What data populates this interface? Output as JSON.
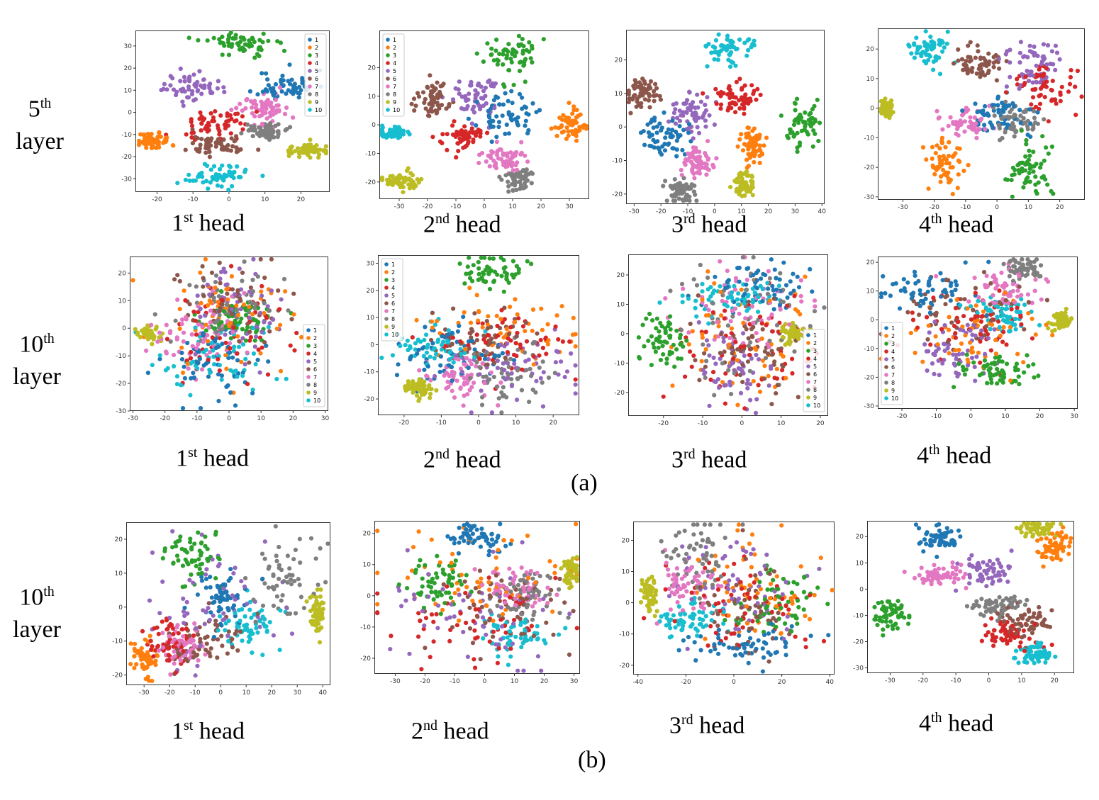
{
  "class_colors": [
    "#1f77b4",
    "#ff7f0e",
    "#2ca02c",
    "#d62728",
    "#9467bd",
    "#8c564b",
    "#e377c2",
    "#7f7f7f",
    "#bcbd22",
    "#17becf"
  ],
  "row_labels": [
    {
      "num": "5",
      "sup": "th",
      "word": "layer"
    },
    {
      "num": "10",
      "sup": "th",
      "word": "layer"
    },
    {
      "num": "10",
      "sup": "th",
      "word": "layer"
    }
  ],
  "panel_tags": [
    "(a)",
    "(b)"
  ],
  "chart_data": [
    {
      "type": "scatter",
      "panel": "a",
      "layer": "5th",
      "title_num": "1",
      "title_sup": "st",
      "title_word": "head",
      "xlim": [
        -26,
        28
      ],
      "ylim": [
        -36,
        37
      ],
      "xticks": [
        -20,
        -10,
        0,
        10,
        20
      ],
      "yticks": [
        -30,
        -20,
        -10,
        0,
        10,
        20,
        30
      ],
      "legend": {
        "labels": [
          "1",
          "2",
          "3",
          "4",
          "5",
          "6",
          "7",
          "8",
          "9",
          "10"
        ],
        "position": "top-right"
      },
      "clusters": [
        [
          16,
          12,
          4,
          3.5
        ],
        [
          -21,
          -13,
          2.5,
          2
        ],
        [
          3,
          31,
          5,
          3
        ],
        [
          -4,
          -5,
          5,
          3
        ],
        [
          -10,
          12,
          4,
          3
        ],
        [
          -3,
          -15,
          4,
          2.5
        ],
        [
          9,
          2,
          4,
          3.5
        ],
        [
          10,
          -8,
          2.5,
          2
        ],
        [
          22,
          -17,
          2.5,
          1.5
        ],
        [
          -3,
          -29,
          4,
          2.5
        ]
      ],
      "n": 60,
      "seed": 11
    },
    {
      "type": "scatter",
      "panel": "a",
      "layer": "5th",
      "title_num": "2",
      "title_sup": "nd",
      "title_word": "head",
      "xlim": [
        -37,
        37
      ],
      "ylim": [
        -26,
        33
      ],
      "xticks": [
        -30,
        -20,
        -10,
        0,
        10,
        20,
        30
      ],
      "yticks": [
        -20,
        -10,
        0,
        10,
        20
      ],
      "legend": {
        "labels": [
          "1",
          "2",
          "3",
          "4",
          "5",
          "6",
          "7",
          "8",
          "9",
          "10"
        ],
        "position": "top-left"
      },
      "clusters": [
        [
          8,
          3,
          5,
          3.5
        ],
        [
          30,
          0,
          3,
          2.5
        ],
        [
          10,
          24,
          5,
          4
        ],
        [
          -8,
          -4,
          4,
          2.5
        ],
        [
          -3,
          10,
          4,
          4
        ],
        [
          -18,
          9,
          3,
          3
        ],
        [
          6,
          -12,
          4,
          2.5
        ],
        [
          12,
          -19,
          3,
          2.5
        ],
        [
          -30,
          -20,
          3,
          1.5
        ],
        [
          -33,
          -3,
          4,
          1
        ]
      ],
      "n": 60,
      "seed": 23
    },
    {
      "type": "scatter",
      "panel": "a",
      "layer": "5th",
      "title_num": "3",
      "title_sup": "rd",
      "title_word": "head",
      "xlim": [
        -33,
        41
      ],
      "ylim": [
        -23,
        29
      ],
      "xticks": [
        -30,
        -20,
        -10,
        0,
        10,
        20,
        30,
        40
      ],
      "yticks": [
        -20,
        -10,
        0,
        10,
        20
      ],
      "legend": null,
      "clusters": [
        [
          -18,
          -3,
          4,
          3
        ],
        [
          14,
          -5,
          2.5,
          3
        ],
        [
          32,
          1,
          3,
          4
        ],
        [
          8,
          9,
          4,
          2.5
        ],
        [
          -8,
          5,
          4,
          3
        ],
        [
          -27,
          10,
          3,
          2
        ],
        [
          -6,
          -10,
          3,
          2.5
        ],
        [
          -12,
          -19,
          3,
          2
        ],
        [
          11,
          -17,
          2,
          2
        ],
        [
          5,
          23,
          4,
          2
        ]
      ],
      "n": 60,
      "seed": 37
    },
    {
      "type": "scatter",
      "panel": "a",
      "layer": "5th",
      "title_num": "4",
      "title_sup": "th",
      "title_word": "head",
      "xlim": [
        -38,
        28
      ],
      "ylim": [
        -31,
        27
      ],
      "xticks": [
        -30,
        -20,
        -10,
        0,
        10,
        20
      ],
      "yticks": [
        -30,
        -20,
        -10,
        0,
        10,
        20
      ],
      "legend": null,
      "clusters": [
        [
          3,
          -2,
          6,
          3
        ],
        [
          -17,
          -19,
          3,
          4
        ],
        [
          10,
          -21,
          4,
          5
        ],
        [
          15,
          7,
          5,
          4
        ],
        [
          12,
          15,
          5,
          5
        ],
        [
          -6,
          15,
          4,
          3
        ],
        [
          -10,
          -5,
          4,
          2.5
        ],
        [
          5,
          -5,
          4,
          3
        ],
        [
          -35,
          0,
          1,
          1.5
        ],
        [
          -22,
          20,
          3,
          3
        ]
      ],
      "n": 60,
      "seed": 41
    },
    {
      "type": "scatter",
      "panel": "a",
      "layer": "10th",
      "title_num": "1",
      "title_sup": "st",
      "title_word": "head",
      "xlim": [
        -31,
        31
      ],
      "ylim": [
        -30,
        26
      ],
      "xticks": [
        -30,
        -20,
        -10,
        0,
        10,
        20,
        30
      ],
      "yticks": [
        -30,
        -20,
        -10,
        0,
        10,
        20
      ],
      "legend": {
        "labels": [
          "1",
          "2",
          "3",
          "4",
          "5",
          "6",
          "7",
          "8",
          "9",
          "10"
        ],
        "position": "center-right"
      },
      "clusters": [
        [
          -4,
          -12,
          8,
          8
        ],
        [
          0,
          5,
          12,
          10
        ],
        [
          3,
          1,
          6,
          5
        ],
        [
          0,
          -2,
          10,
          10
        ],
        [
          5,
          8,
          8,
          8
        ],
        [
          3,
          8,
          10,
          8
        ],
        [
          -10,
          -3,
          8,
          6
        ],
        [
          0,
          8,
          10,
          8
        ],
        [
          -25,
          -2,
          1.5,
          1.5
        ],
        [
          -5,
          -10,
          10,
          6
        ]
      ],
      "n": 60,
      "seed": 53
    },
    {
      "type": "scatter",
      "panel": "a",
      "layer": "10th",
      "title_num": "2",
      "title_sup": "nd",
      "title_word": "head",
      "xlim": [
        -27,
        27
      ],
      "ylim": [
        -26,
        33
      ],
      "xticks": [
        -20,
        -10,
        0,
        10,
        20
      ],
      "yticks": [
        -20,
        -10,
        0,
        10,
        20,
        30
      ],
      "legend": {
        "labels": [
          "1",
          "2",
          "3",
          "4",
          "5",
          "6",
          "7",
          "8",
          "9",
          "10"
        ],
        "position": "top-left"
      },
      "clusters": [
        [
          -8,
          -5,
          8,
          6
        ],
        [
          5,
          5,
          10,
          6
        ],
        [
          3,
          26,
          4,
          3
        ],
        [
          5,
          0,
          10,
          6
        ],
        [
          10,
          -8,
          8,
          6
        ],
        [
          0,
          0,
          6,
          5
        ],
        [
          -5,
          -12,
          5,
          4
        ],
        [
          8,
          -10,
          6,
          6
        ],
        [
          -16,
          -16,
          2,
          1.5
        ],
        [
          -12,
          -2,
          6,
          4
        ]
      ],
      "n": 60,
      "seed": 67
    },
    {
      "type": "scatter",
      "panel": "a",
      "layer": "10th",
      "title_num": "3",
      "title_sup": "rd",
      "title_word": "head",
      "xlim": [
        -29,
        22
      ],
      "ylim": [
        -28,
        27
      ],
      "xticks": [
        -20,
        -10,
        0,
        10,
        20
      ],
      "yticks": [
        -20,
        -10,
        0,
        10,
        20
      ],
      "legend": {
        "labels": [
          "1",
          "2",
          "3",
          "4",
          "5",
          "6",
          "7",
          "8",
          "9",
          "10"
        ],
        "position": "center-right"
      },
      "clusters": [
        [
          5,
          17,
          6,
          4
        ],
        [
          0,
          0,
          10,
          10
        ],
        [
          -20,
          -2,
          3,
          5
        ],
        [
          0,
          -5,
          10,
          10
        ],
        [
          -2,
          -12,
          5,
          6
        ],
        [
          2,
          -5,
          8,
          8
        ],
        [
          0,
          10,
          10,
          8
        ],
        [
          0,
          5,
          10,
          10
        ],
        [
          13,
          0,
          1.5,
          1.5
        ],
        [
          -3,
          12,
          6,
          3
        ]
      ],
      "n": 60,
      "seed": 79
    },
    {
      "type": "scatter",
      "panel": "a",
      "layer": "10th",
      "title_num": "4",
      "title_sup": "th",
      "title_word": "head",
      "xlim": [
        -27,
        31
      ],
      "ylim": [
        -31,
        22
      ],
      "xticks": [
        -20,
        -10,
        0,
        10,
        20,
        30
      ],
      "yticks": [
        -30,
        -20,
        -10,
        0,
        10,
        20
      ],
      "legend": {
        "labels": [
          "1",
          "2",
          "3",
          "4",
          "5",
          "6",
          "7",
          "8",
          "9",
          "10"
        ],
        "position": "center-left"
      },
      "clusters": [
        [
          -12,
          10,
          7,
          4
        ],
        [
          0,
          -5,
          12,
          6
        ],
        [
          8,
          -18,
          5,
          3
        ],
        [
          0,
          -2,
          10,
          6
        ],
        [
          -5,
          -10,
          6,
          6
        ],
        [
          -3,
          5,
          10,
          6
        ],
        [
          10,
          10,
          6,
          4
        ],
        [
          15,
          18,
          3,
          2
        ],
        [
          26,
          0,
          1.5,
          1.5
        ],
        [
          10,
          2,
          5,
          3
        ]
      ],
      "n": 60,
      "seed": 83
    },
    {
      "type": "scatter",
      "panel": "b",
      "layer": "10th",
      "title_num": "1",
      "title_sup": "st",
      "title_word": "head",
      "xlim": [
        -37,
        43
      ],
      "ylim": [
        -23,
        25
      ],
      "xticks": [
        -30,
        -20,
        -10,
        0,
        10,
        20,
        30,
        40
      ],
      "yticks": [
        -20,
        -10,
        0,
        10,
        20
      ],
      "legend": null,
      "clusters": [
        [
          -2,
          3,
          6,
          4
        ],
        [
          -30,
          -15,
          3,
          3
        ],
        [
          -12,
          15,
          5,
          4
        ],
        [
          -20,
          -10,
          5,
          4
        ],
        [
          0,
          0,
          15,
          10
        ],
        [
          -5,
          -10,
          8,
          4
        ],
        [
          -15,
          -12,
          5,
          3
        ],
        [
          25,
          8,
          8,
          6
        ],
        [
          38,
          -2,
          1.5,
          3
        ],
        [
          10,
          -5,
          6,
          3
        ]
      ],
      "n": 60,
      "seed": 97
    },
    {
      "type": "scatter",
      "panel": "b",
      "layer": "10th",
      "title_num": "2",
      "title_sup": "nd",
      "title_word": "head",
      "xlim": [
        -37,
        32
      ],
      "ylim": [
        -25,
        24
      ],
      "xticks": [
        -30,
        -20,
        -10,
        0,
        10,
        20,
        30
      ],
      "yticks": [
        -20,
        -10,
        0,
        10,
        20
      ],
      "legend": null,
      "clusters": [
        [
          -3,
          19,
          5,
          2.5
        ],
        [
          0,
          5,
          18,
          8
        ],
        [
          -15,
          5,
          5,
          4
        ],
        [
          -5,
          -8,
          15,
          6
        ],
        [
          -5,
          -5,
          15,
          10
        ],
        [
          5,
          -5,
          12,
          8
        ],
        [
          10,
          3,
          6,
          3
        ],
        [
          15,
          0,
          6,
          4
        ],
        [
          29,
          8,
          1.5,
          2.5
        ],
        [
          10,
          -12,
          5,
          3
        ]
      ],
      "n": 60,
      "seed": 101
    },
    {
      "type": "scatter",
      "panel": "b",
      "layer": "10th",
      "title_num": "3",
      "title_sup": "rd",
      "title_word": "head",
      "xlim": [
        -42,
        42
      ],
      "ylim": [
        -23,
        26
      ],
      "xticks": [
        -40,
        -20,
        0,
        20,
        40
      ],
      "yticks": [
        -20,
        -10,
        0,
        10,
        20
      ],
      "legend": null,
      "clusters": [
        [
          5,
          -14,
          12,
          3
        ],
        [
          10,
          5,
          15,
          8
        ],
        [
          20,
          0,
          10,
          6
        ],
        [
          0,
          0,
          15,
          8
        ],
        [
          5,
          5,
          15,
          8
        ],
        [
          5,
          -2,
          10,
          8
        ],
        [
          -20,
          5,
          6,
          4
        ],
        [
          -15,
          15,
          6,
          6
        ],
        [
          -35,
          2,
          1.5,
          3
        ],
        [
          -20,
          -5,
          8,
          3
        ]
      ],
      "n": 60,
      "seed": 113
    },
    {
      "type": "scatter",
      "panel": "b",
      "layer": "10th",
      "title_num": "4",
      "title_sup": "th",
      "title_word": "head",
      "xlim": [
        -37,
        26
      ],
      "ylim": [
        -32,
        26
      ],
      "xticks": [
        -30,
        -20,
        -10,
        0,
        10,
        20
      ],
      "yticks": [
        -30,
        -20,
        -10,
        0,
        10,
        20
      ],
      "legend": null,
      "clusters": [
        [
          -15,
          19,
          3,
          2.5
        ],
        [
          20,
          15,
          3,
          3
        ],
        [
          -30,
          -10,
          3,
          3
        ],
        [
          7,
          -17,
          4,
          3
        ],
        [
          0,
          7,
          4,
          3
        ],
        [
          12,
          -12,
          4,
          3
        ],
        [
          -15,
          5,
          4,
          2
        ],
        [
          3,
          -6,
          4,
          2
        ],
        [
          15,
          23,
          3,
          1.5
        ],
        [
          15,
          -25,
          3,
          2
        ]
      ],
      "n": 60,
      "seed": 127
    }
  ]
}
